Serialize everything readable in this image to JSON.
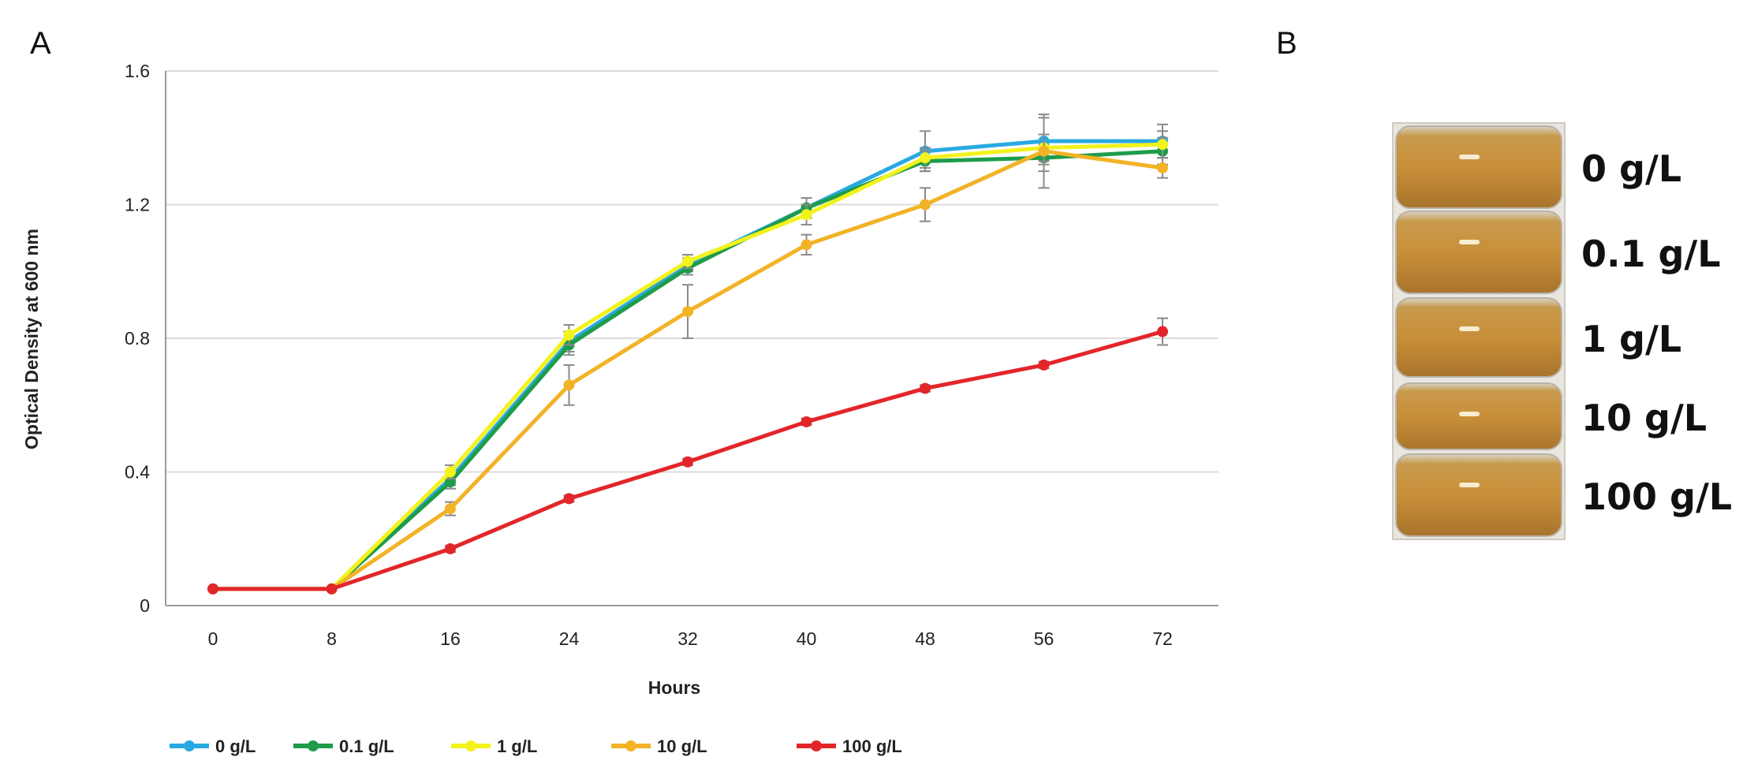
{
  "figure": {
    "panel_a_label": "A",
    "panel_b_label": "B"
  },
  "chart_data": {
    "type": "line",
    "title": "",
    "xlabel": "Hours",
    "ylabel": "Optical Density at 600 nm",
    "x": [
      0,
      8,
      16,
      24,
      32,
      40,
      48,
      56,
      72
    ],
    "x_tick_labels": [
      "0",
      "8",
      "16",
      "24",
      "32",
      "40",
      "48",
      "56",
      "72"
    ],
    "ylim": [
      0,
      1.6
    ],
    "y_ticks": [
      0,
      0.4,
      0.8,
      1.2,
      1.6
    ],
    "y_tick_labels": [
      "0",
      "0.4",
      "0.8",
      "1.2",
      "1.6"
    ],
    "grid": "horizontal",
    "legend_position": "bottom",
    "series": [
      {
        "name": "0 g/L",
        "color": "#29a9e1",
        "values": [
          0.05,
          0.05,
          0.38,
          0.79,
          1.02,
          1.19,
          1.36,
          1.39,
          1.39
        ],
        "errors": [
          0.0,
          0.0,
          0.02,
          0.03,
          0.02,
          0.03,
          0.06,
          0.07,
          0.05
        ]
      },
      {
        "name": "0.1 g/L",
        "color": "#1e9c4a",
        "values": [
          0.05,
          0.05,
          0.37,
          0.78,
          1.01,
          1.19,
          1.33,
          1.34,
          1.36
        ],
        "errors": [
          0.0,
          0.0,
          0.02,
          0.03,
          0.02,
          0.03,
          0.03,
          0.04,
          0.04
        ]
      },
      {
        "name": "1 g/L",
        "color": "#f2f21c",
        "values": [
          0.05,
          0.05,
          0.4,
          0.81,
          1.03,
          1.17,
          1.34,
          1.37,
          1.38
        ],
        "errors": [
          0.0,
          0.0,
          0.02,
          0.03,
          0.02,
          0.03,
          0.03,
          0.04,
          0.04
        ]
      },
      {
        "name": "10 g/L",
        "color": "#f2b327",
        "values": [
          0.05,
          0.05,
          0.29,
          0.66,
          0.88,
          1.08,
          1.2,
          1.36,
          1.31
        ],
        "errors": [
          0.0,
          0.0,
          0.02,
          0.06,
          0.08,
          0.03,
          0.05,
          0.11,
          0.03
        ]
      },
      {
        "name": "100 g/L",
        "color": "#e3262a",
        "values": [
          0.05,
          0.05,
          0.17,
          0.32,
          0.43,
          0.55,
          0.65,
          0.72,
          0.82
        ],
        "errors": [
          0.0,
          0.0,
          0.01,
          0.01,
          0.01,
          0.01,
          0.01,
          0.01,
          0.04
        ]
      }
    ]
  },
  "tubes": {
    "labels": [
      "0 g/L",
      "0.1 g/L",
      "1 g/L",
      "10 g/L",
      "100 g/L"
    ]
  }
}
